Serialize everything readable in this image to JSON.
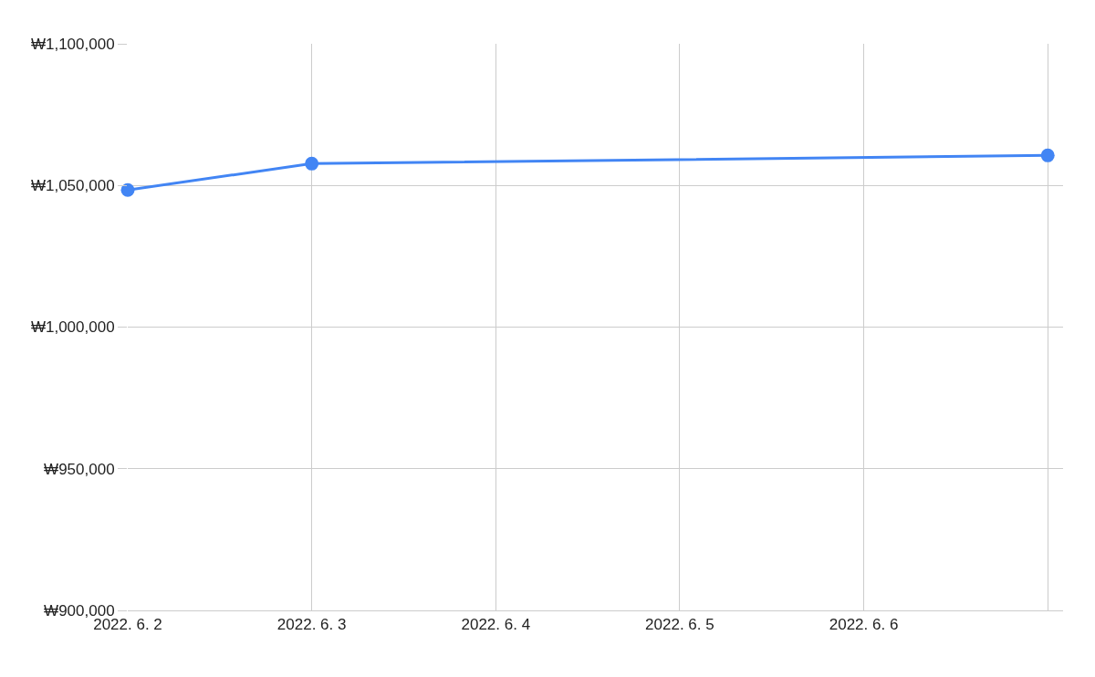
{
  "chart_data": {
    "type": "line",
    "x": [
      "2022-06-02",
      "2022-06-03",
      "2022-06-07"
    ],
    "series": [
      {
        "color": "#4285f4",
        "values": [
          1048400,
          1057700,
          1060600
        ]
      }
    ],
    "xlim": [
      "2022-06-02",
      "2022-06-07T02:00"
    ],
    "xticks": [
      {
        "value": "2022-06-02",
        "label": "2022. 6. 2"
      },
      {
        "value": "2022-06-03",
        "label": "2022. 6. 3"
      },
      {
        "value": "2022-06-04",
        "label": "2022. 6. 4"
      },
      {
        "value": "2022-06-05",
        "label": "2022. 6. 5"
      },
      {
        "value": "2022-06-06",
        "label": "2022. 6. 6"
      },
      {
        "value": "2022-06-07",
        "label": null
      }
    ],
    "ylim": [
      900000,
      1100000
    ],
    "yticks": [
      {
        "value": 900000,
        "label": "₩900,000"
      },
      {
        "value": 950000,
        "label": "₩950,000"
      },
      {
        "value": 1000000,
        "label": "₩1,000,000"
      },
      {
        "value": 1050000,
        "label": "₩1,050,000"
      },
      {
        "value": 1100000,
        "label": "₩1,100,000"
      }
    ],
    "grid": true,
    "marker": "circle",
    "line_style": "solid"
  }
}
